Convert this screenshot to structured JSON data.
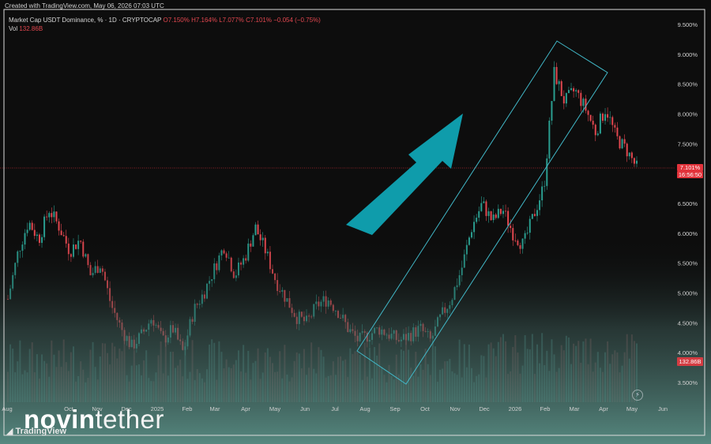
{
  "header": {
    "created": "Created with TradingView.com, May 06, 2026 07:03 UTC",
    "symbol": "Market Cap USDT Dominance, % · 1D · CRYPTOCAP",
    "open": "O7.150%",
    "high": "H7.164%",
    "low": "L7.077%",
    "close": "C7.101%",
    "change": "−0.054 (−0.75%)",
    "vol_label": "Vol",
    "vol_value": "132.86B"
  },
  "price_tags": {
    "last_price": "7.101%",
    "countdown": "16:56:50",
    "volume": "132.86B"
  },
  "brand": {
    "word1": "novin",
    "word2": "tether",
    "tv": "TradingView"
  },
  "colors": {
    "up": "#2a9d8f",
    "down": "#e2474f",
    "channel": "#41b8c8",
    "arrow": "#0f9cab",
    "price_line": "#e2333b"
  },
  "chart_data": {
    "type": "line",
    "title": "Market Cap USDT Dominance, % · 1D · CRYPTOCAP",
    "xlabel": "",
    "ylabel": "",
    "ylim": [
      3.2,
      9.7
    ],
    "y_ticks": [
      "9.500%",
      "9.000%",
      "8.500%",
      "8.000%",
      "7.500%",
      "7.000%",
      "6.500%",
      "6.000%",
      "5.500%",
      "5.000%",
      "4.500%",
      "4.000%",
      "3.500%"
    ],
    "x_ticks": [
      "Aug",
      "Oct",
      "Nov",
      "Dec",
      "2025",
      "Feb",
      "Mar",
      "Apr",
      "May",
      "Jun",
      "Jul",
      "Aug",
      "Sep",
      "Oct",
      "Nov",
      "Dec",
      "2026",
      "Feb",
      "Mar",
      "Apr",
      "May",
      "Jun"
    ],
    "series": [
      {
        "values": [
          4.9,
          5.7,
          6.2,
          5.9,
          6.4,
          6.1,
          5.7,
          5.9,
          5.3,
          5.5,
          4.8,
          4.4,
          4.1,
          4.3,
          4.6,
          4.2,
          4.4,
          4.0,
          4.7,
          5.0,
          5.4,
          5.8,
          5.3,
          5.6,
          6.1,
          5.7,
          5.2,
          4.9,
          4.6,
          4.5,
          4.8,
          4.9,
          4.7,
          4.4,
          4.2,
          4.3,
          4.4,
          4.3,
          4.2,
          4.3,
          4.4,
          4.2,
          4.6,
          4.9,
          5.4,
          6.1,
          6.5,
          6.2,
          6.4,
          6.0,
          5.8,
          6.3,
          6.8,
          8.7,
          8.2,
          8.4,
          8.1,
          7.7,
          8.1,
          7.6,
          7.4,
          7.1
        ]
      }
    ],
    "last_price": 7.101,
    "channel": {
      "lower_line": [
        [
          "Aug",
          4.0
        ],
        [
          "Feb",
          7.2
        ],
        [
          "Mar",
          8.0
        ]
      ],
      "upper_line": [
        [
          "Aug",
          3.5
        ],
        [
          "Feb",
          8.7
        ],
        [
          "Mar",
          9.2
        ]
      ]
    },
    "legend": "none",
    "grid": false
  }
}
